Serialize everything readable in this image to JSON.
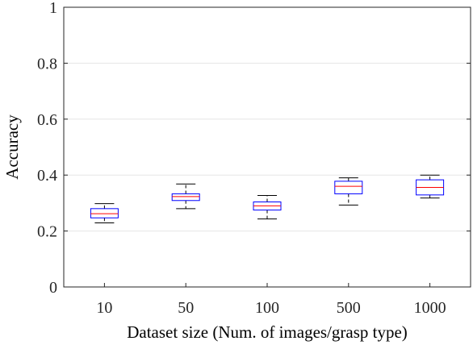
{
  "chart_data": {
    "type": "box",
    "title": "",
    "xlabel": "Dataset size (Num. of images/grasp type)",
    "ylabel": "Accuracy",
    "categories": [
      "10",
      "50",
      "100",
      "500",
      "1000"
    ],
    "ylim": [
      0,
      1
    ],
    "yticks": [
      0,
      0.2,
      0.4,
      0.6,
      0.8,
      1
    ],
    "ytick_labels": [
      "0",
      "0.2",
      "0.4",
      "0.6",
      "0.8",
      "1"
    ],
    "grid": "horizontal",
    "box_color": "#0000ff",
    "median_color": "#ff0000",
    "whisker_color": "#000000",
    "boxes": [
      {
        "category": "10",
        "min": 0.229,
        "q1": 0.247,
        "median": 0.262,
        "q3": 0.28,
        "max": 0.298
      },
      {
        "category": "50",
        "min": 0.28,
        "q1": 0.309,
        "median": 0.323,
        "q3": 0.333,
        "max": 0.368
      },
      {
        "category": "100",
        "min": 0.243,
        "q1": 0.275,
        "median": 0.29,
        "q3": 0.304,
        "max": 0.327
      },
      {
        "category": "500",
        "min": 0.293,
        "q1": 0.333,
        "median": 0.36,
        "q3": 0.378,
        "max": 0.39
      },
      {
        "category": "1000",
        "min": 0.318,
        "q1": 0.329,
        "median": 0.356,
        "q3": 0.383,
        "max": 0.4
      }
    ]
  }
}
